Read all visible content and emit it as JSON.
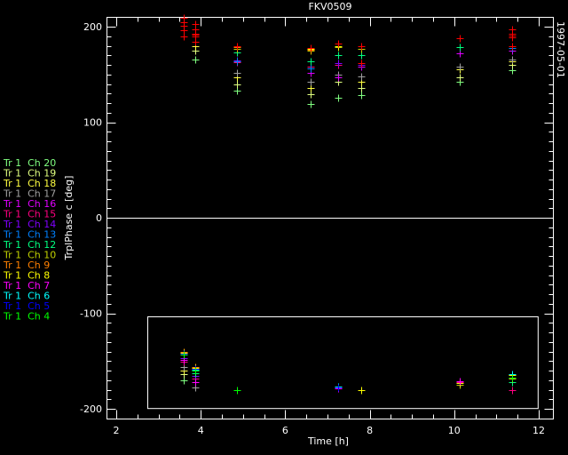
{
  "chart_data": {
    "type": "scatter",
    "title": "FKV0509",
    "xlabel": "Time [h]",
    "ylabel": "TrplPhase c [deg]",
    "side_label": "1997-05-01",
    "xlim": [
      1.77,
      12.35
    ],
    "ylim": [
      -210,
      210
    ],
    "x_ticks": [
      2,
      4,
      6,
      8,
      10,
      12
    ],
    "x_minor_step": 0.5,
    "y_ticks": [
      -200,
      -100,
      0,
      100,
      200
    ],
    "y_minor_step": 10,
    "grid": false,
    "background": "#000000",
    "axis_color": "#ffffff",
    "marker": "plus",
    "zero_line": 0,
    "highlight_box": {
      "x": [
        2.74,
        11.98
      ],
      "y": [
        -199,
        -103
      ]
    },
    "legend_position": "left",
    "series": [
      {
        "name": "Tr 1  Ch 20",
        "color": "#80ff80",
        "points": [
          [
            3.6,
            -170
          ],
          [
            3.88,
            166
          ],
          [
            4.85,
            133
          ],
          [
            6.6,
            119
          ],
          [
            7.25,
            126
          ],
          [
            7.8,
            128
          ],
          [
            10.13,
            142
          ],
          [
            11.38,
            154
          ]
        ]
      },
      {
        "name": "Tr 1  Ch 19",
        "color": "#e0ff80",
        "points": [
          [
            3.6,
            -164
          ],
          [
            3.88,
            175
          ],
          [
            4.85,
            140
          ],
          [
            6.6,
            129
          ],
          [
            7.25,
            142
          ],
          [
            7.8,
            136
          ],
          [
            10.13,
            147
          ],
          [
            11.38,
            160
          ]
        ]
      },
      {
        "name": "Tr 1  Ch 18",
        "color": "#ffff40",
        "points": [
          [
            3.6,
            -160
          ],
          [
            3.88,
            180
          ],
          [
            4.85,
            147
          ],
          [
            6.6,
            136
          ],
          [
            7.25,
            147
          ],
          [
            7.8,
            142
          ],
          [
            10.13,
            155
          ],
          [
            11.38,
            164
          ]
        ]
      },
      {
        "name": "Tr 1  Ch 17",
        "color": "#a0a0a0",
        "points": [
          [
            3.6,
            -156
          ],
          [
            3.88,
            -178
          ],
          [
            4.85,
            152
          ],
          [
            6.6,
            142
          ],
          [
            7.25,
            150
          ],
          [
            7.8,
            148
          ],
          [
            10.13,
            158
          ],
          [
            11.38,
            166
          ]
        ]
      },
      {
        "name": "Tr 1  Ch 16",
        "color": "#e000ff",
        "points": [
          [
            3.6,
            -149
          ],
          [
            3.88,
            -172
          ],
          [
            4.85,
            165
          ],
          [
            6.6,
            152
          ],
          [
            7.25,
            147
          ],
          [
            7.8,
            158
          ],
          [
            10.13,
            172
          ],
          [
            11.38,
            175
          ]
        ]
      },
      {
        "name": "Tr 1  Ch 15",
        "color": "#ff0080",
        "points": [
          [
            3.6,
            -151
          ],
          [
            3.88,
            -168
          ],
          [
            4.85,
            163
          ],
          [
            6.6,
            158
          ],
          [
            7.25,
            160
          ],
          [
            7.8,
            162
          ],
          [
            10.13,
            -172
          ],
          [
            11.38,
            -180
          ]
        ]
      },
      {
        "name": "Tr 1  Ch 14",
        "color": "#8000ff",
        "points": [
          [
            3.6,
            -147
          ],
          [
            3.88,
            -166
          ],
          [
            4.85,
            165
          ],
          [
            6.6,
            177
          ],
          [
            7.25,
            162
          ],
          [
            7.8,
            160
          ],
          [
            11.38,
            178
          ]
        ]
      },
      {
        "name": "Tr 1  Ch 13",
        "color": "#0080ff",
        "points": [
          [
            3.6,
            -142
          ],
          [
            3.88,
            -159
          ],
          [
            4.85,
            164
          ],
          [
            6.6,
            156
          ],
          [
            7.25,
            170
          ],
          [
            7.8,
            162
          ],
          [
            11.38,
            178
          ]
        ]
      },
      {
        "name": "Tr 1  Ch 12",
        "color": "#00ff80",
        "points": [
          [
            3.6,
            -143
          ],
          [
            3.88,
            -163
          ],
          [
            4.85,
            173
          ],
          [
            6.6,
            164
          ],
          [
            7.25,
            170
          ],
          [
            7.8,
            170
          ],
          [
            10.13,
            179
          ],
          [
            11.38,
            -172
          ]
        ]
      },
      {
        "name": "Tr 1  Ch 10",
        "color": "#c0d000",
        "points": [
          [
            3.6,
            -141
          ],
          [
            3.88,
            -160
          ],
          [
            4.85,
            177
          ],
          [
            6.6,
            175
          ],
          [
            7.25,
            179
          ],
          [
            7.8,
            177
          ],
          [
            10.13,
            -175
          ],
          [
            11.38,
            -168
          ]
        ]
      },
      {
        "name": "Tr 1  Ch 9",
        "color": "#ff8000",
        "points": [
          [
            3.6,
            -140
          ],
          [
            3.88,
            -156
          ],
          [
            4.85,
            179
          ],
          [
            6.6,
            176
          ],
          [
            7.25,
            180
          ],
          [
            7.8,
            -180
          ],
          [
            11.38,
            -165
          ]
        ]
      },
      {
        "name": "Tr 1  Ch 8",
        "color": "#ffff00",
        "points": [
          [
            3.6,
            -141
          ],
          [
            3.88,
            -157
          ],
          [
            4.85,
            -180
          ],
          [
            6.6,
            177
          ],
          [
            7.25,
            180
          ],
          [
            7.8,
            -180
          ],
          [
            10.13,
            -173
          ],
          [
            11.38,
            -165
          ]
        ]
      },
      {
        "name": "Tr 1  Ch 7",
        "color": "#ff00ff",
        "points": [
          [
            3.6,
            -149
          ],
          [
            3.88,
            -172
          ],
          [
            7.25,
            -179
          ],
          [
            10.13,
            -171
          ],
          [
            11.38,
            -167
          ]
        ]
      },
      {
        "name": "Tr 1  Ch 6",
        "color": "#00ffff",
        "points": [
          [
            3.6,
            -142
          ],
          [
            3.88,
            -159
          ],
          [
            7.25,
            -177
          ],
          [
            11.38,
            -164
          ]
        ]
      },
      {
        "name": "Tr 1  Ch 5",
        "color": "#0000ff",
        "points": [
          [
            3.6,
            -142
          ],
          [
            3.88,
            -158
          ],
          [
            7.25,
            -178
          ]
        ]
      },
      {
        "name": "Tr 1  Ch 4",
        "color": "#00ff00",
        "points": [
          [
            3.6,
            -143
          ],
          [
            3.88,
            -160
          ],
          [
            4.85,
            -180
          ],
          [
            11.38,
            -167
          ]
        ]
      },
      {
        "color": "#ff0000",
        "points": [
          [
            3.6,
            209
          ],
          [
            3.6,
            205
          ],
          [
            3.6,
            201
          ],
          [
            3.6,
            196
          ],
          [
            3.6,
            190
          ],
          [
            3.88,
            203
          ],
          [
            3.88,
            197
          ],
          [
            3.88,
            193
          ],
          [
            3.88,
            192
          ],
          [
            3.88,
            190
          ],
          [
            3.88,
            184
          ],
          [
            4.85,
            180
          ],
          [
            6.6,
            178
          ],
          [
            7.25,
            182
          ],
          [
            7.8,
            180
          ],
          [
            7.8,
            162
          ],
          [
            10.13,
            188
          ],
          [
            11.38,
            197
          ],
          [
            11.38,
            193
          ],
          [
            11.38,
            191
          ],
          [
            11.38,
            189
          ],
          [
            11.38,
            180
          ]
        ]
      }
    ]
  }
}
